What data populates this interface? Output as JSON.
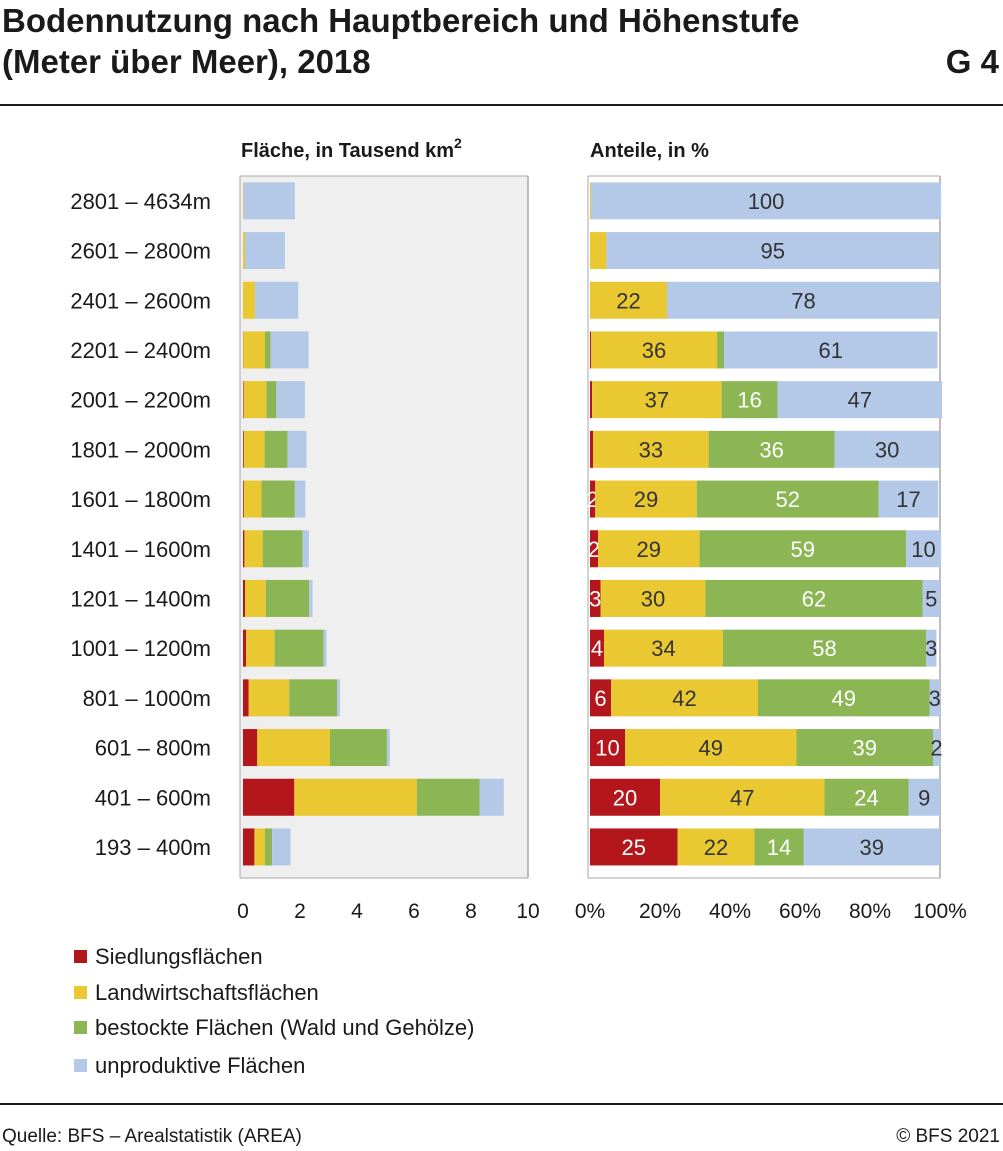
{
  "header": {
    "title_line1": "Bodennutzung nach Hauptbereich und Höhenstufe",
    "title_line2": "(Meter über Meer), 2018",
    "figure_tag": "G 4"
  },
  "legend": [
    {
      "label": "Siedlungsflächen",
      "color": "#b3171c"
    },
    {
      "label": "Landwirtschaftsflächen",
      "color": "#e9c832"
    },
    {
      "label": "bestockte Flächen (Wald und Gehölze)",
      "color": "#8cb653"
    },
    {
      "label": "unproduktive Flächen",
      "color": "#b4c8e8"
    }
  ],
  "footer": {
    "source": "Quelle: BFS – Arealstatistik (AREA)",
    "copyright": "© BFS 2021"
  },
  "chart_data": [
    {
      "type": "bar",
      "orientation": "horizontal",
      "stacked": true,
      "title": "Fläche, in Tausend km²",
      "categories": [
        "2801 – 4634m",
        "2601 – 2800m",
        "2401 – 2600m",
        "2201 – 2400m",
        "2001 – 2200m",
        "1801 – 2000m",
        "1601 – 1800m",
        "1401 – 1600m",
        "1201 – 1400m",
        "1001 – 1200m",
        "801 – 1000m",
        "601 – 800m",
        "401 – 600m",
        "193 – 400m"
      ],
      "xlim": [
        0,
        10
      ],
      "xticks": [
        "0",
        "2",
        "4",
        "6",
        "8",
        "10"
      ],
      "grid": false,
      "series": [
        {
          "name": "Siedlungsflächen",
          "color": "#b3171c",
          "values": [
            0,
            0,
            0,
            0.01,
            0.02,
            0.03,
            0.03,
            0.05,
            0.07,
            0.11,
            0.2,
            0.5,
            1.8,
            0.4
          ]
        },
        {
          "name": "Landwirtschaftsflächen",
          "color": "#e9c832",
          "values": [
            0.02,
            0.07,
            0.42,
            0.76,
            0.8,
            0.73,
            0.62,
            0.64,
            0.73,
            1.0,
            1.42,
            2.55,
            4.3,
            0.37
          ]
        },
        {
          "name": "bestockte Flächen (Wald und Gehölze)",
          "color": "#8cb653",
          "values": [
            0,
            0,
            0,
            0.2,
            0.35,
            0.8,
            1.17,
            1.4,
            1.52,
            1.72,
            1.68,
            2.0,
            2.2,
            0.25
          ]
        },
        {
          "name": "unproduktive Flächen",
          "color": "#b4c8e8",
          "values": [
            1.8,
            1.4,
            1.52,
            1.33,
            1.0,
            0.67,
            0.37,
            0.22,
            0.12,
            0.1,
            0.1,
            0.1,
            0.85,
            0.65
          ]
        }
      ]
    },
    {
      "type": "bar",
      "orientation": "horizontal",
      "stacked": true,
      "title": "Anteile, in %",
      "categories": [
        "2801 – 4634m",
        "2601 – 2800m",
        "2401 – 2600m",
        "2201 – 2400m",
        "2001 – 2200m",
        "1801 – 2000m",
        "1601 – 1800m",
        "1401 – 1600m",
        "1201 – 1400m",
        "1001 – 1200m",
        "801 – 1000m",
        "601 – 800m",
        "401 – 600m",
        "193 – 400m"
      ],
      "xlim": [
        0,
        100
      ],
      "xticks": [
        "0%",
        "20%",
        "40%",
        "60%",
        "80%",
        "100%"
      ],
      "series": [
        {
          "name": "Siedlungsflächen",
          "color": "#b3171c",
          "values": [
            0,
            0,
            0,
            0.3,
            0.6,
            0.9,
            1.5,
            2.3,
            3,
            4,
            6,
            10,
            20,
            25
          ],
          "labels": [
            "",
            "",
            "",
            "",
            "",
            "",
            "2",
            "2",
            "3",
            "4",
            "6",
            "10",
            "20",
            "25"
          ]
        },
        {
          "name": "Landwirtschaftsflächen",
          "color": "#e9c832",
          "values": [
            0.3,
            4.7,
            22,
            36,
            37,
            33,
            29,
            29,
            30,
            34,
            42,
            49,
            47,
            22
          ],
          "labels": [
            "",
            "",
            "22",
            "36",
            "37",
            "33",
            "29",
            "29",
            "30",
            "34",
            "42",
            "49",
            "47",
            "22"
          ]
        },
        {
          "name": "bestockte Flächen (Wald und Gehölze)",
          "color": "#8cb653",
          "values": [
            0,
            0,
            0,
            2,
            16,
            36,
            52,
            59,
            62,
            58,
            49,
            39,
            24,
            14
          ],
          "labels": [
            "",
            "",
            "",
            "",
            "16",
            "36",
            "52",
            "59",
            "62",
            "58",
            "49",
            "39",
            "24",
            "14"
          ]
        },
        {
          "name": "unproduktive Flächen",
          "color": "#b4c8e8",
          "values": [
            100,
            95,
            78,
            61,
            47,
            30,
            17,
            10,
            5,
            3,
            3,
            2,
            9,
            39
          ],
          "labels": [
            "100",
            "95",
            "78",
            "61",
            "47",
            "30",
            "17",
            "10",
            "5",
            "3",
            "3",
            "2",
            "9",
            "39"
          ]
        }
      ]
    }
  ]
}
